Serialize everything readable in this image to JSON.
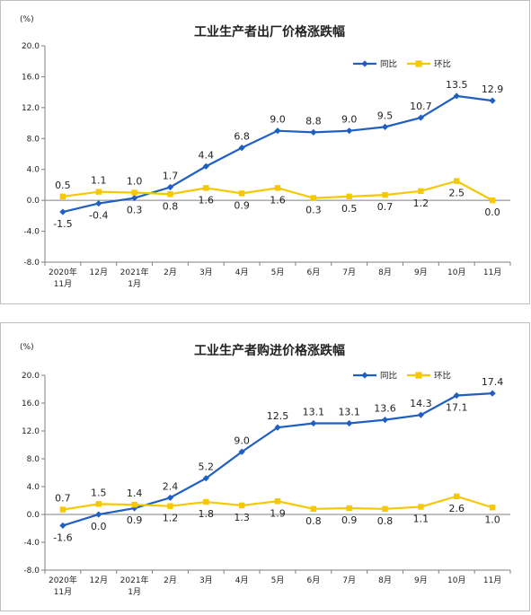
{
  "chart_data": [
    {
      "type": "line",
      "title": "工业生产者出厂价格涨跌幅",
      "unit": "(%)",
      "yticks": [
        "20.0",
        "16.0",
        "12.0",
        "8.0",
        "4.0",
        "0.0",
        "-4.0",
        "-8.0"
      ],
      "ylim": [
        -8,
        20
      ],
      "categories": [
        [
          "2020年",
          "11月"
        ],
        [
          "12月"
        ],
        [
          "2021年",
          "1月"
        ],
        [
          "2月"
        ],
        [
          "3月"
        ],
        [
          "4月"
        ],
        [
          "5月"
        ],
        [
          "6月"
        ],
        [
          "7月"
        ],
        [
          "8月"
        ],
        [
          "9月"
        ],
        [
          "10月"
        ],
        [
          "11月"
        ]
      ],
      "series": [
        {
          "name": "同比",
          "color": "#1f5fc4",
          "marker": "diamond",
          "values": [
            -1.5,
            -0.4,
            0.3,
            1.7,
            4.4,
            6.8,
            9.0,
            8.8,
            9.0,
            9.5,
            10.7,
            13.5,
            12.9
          ],
          "labels": [
            "-1.5",
            "-0.4",
            "0.3",
            "1.7",
            "4.4",
            "6.8",
            "9.0",
            "8.8",
            "9.0",
            "9.5",
            "10.7",
            "13.5",
            "12.9"
          ]
        },
        {
          "name": "环比",
          "color": "#f5c800",
          "marker": "square",
          "values": [
            0.5,
            1.1,
            1.0,
            0.8,
            1.6,
            0.9,
            1.6,
            0.3,
            0.5,
            0.7,
            1.2,
            2.5,
            0.0
          ],
          "labels": [
            "0.5",
            "1.1",
            "1.0",
            "0.8",
            "1.6",
            "0.9",
            "1.6",
            "0.3",
            "0.5",
            "0.7",
            "1.2",
            "2.5",
            "0.0"
          ]
        }
      ],
      "legend": "top-right",
      "grid": false
    },
    {
      "type": "line",
      "title": "工业生产者购进价格涨跌幅",
      "unit": "(%)",
      "yticks": [
        "20.0",
        "16.0",
        "12.0",
        "8.0",
        "4.0",
        "0.0",
        "-4.0",
        "-8.0"
      ],
      "ylim": [
        -8,
        20
      ],
      "categories": [
        [
          "2020年",
          "11月"
        ],
        [
          "12月"
        ],
        [
          "2021年",
          "1月"
        ],
        [
          "2月"
        ],
        [
          "3月"
        ],
        [
          "4月"
        ],
        [
          "5月"
        ],
        [
          "6月"
        ],
        [
          "7月"
        ],
        [
          "8月"
        ],
        [
          "9月"
        ],
        [
          "10月"
        ],
        [
          "11月"
        ]
      ],
      "series": [
        {
          "name": "同比",
          "color": "#1f5fc4",
          "marker": "diamond",
          "values": [
            -1.6,
            0.0,
            0.9,
            2.4,
            5.2,
            9.0,
            12.5,
            13.1,
            13.1,
            13.6,
            14.3,
            17.1,
            17.4
          ],
          "labels": [
            "-1.6",
            "0.0",
            "0.9",
            "2.4",
            "5.2",
            "9.0",
            "12.5",
            "13.1",
            "13.1",
            "13.6",
            "14.3",
            "17.1",
            "17.4"
          ]
        },
        {
          "name": "环比",
          "color": "#f5c800",
          "marker": "square",
          "values": [
            0.7,
            1.5,
            1.4,
            1.2,
            1.8,
            1.3,
            1.9,
            0.8,
            0.9,
            0.8,
            1.1,
            2.6,
            1.0
          ],
          "labels": [
            "0.7",
            "1.5",
            "1.4",
            "1.2",
            "1.8",
            "1.3",
            "1.9",
            "0.8",
            "0.9",
            "0.8",
            "1.1",
            "2.6",
            "1.0"
          ]
        }
      ],
      "legend": "top-right",
      "grid": false
    }
  ]
}
